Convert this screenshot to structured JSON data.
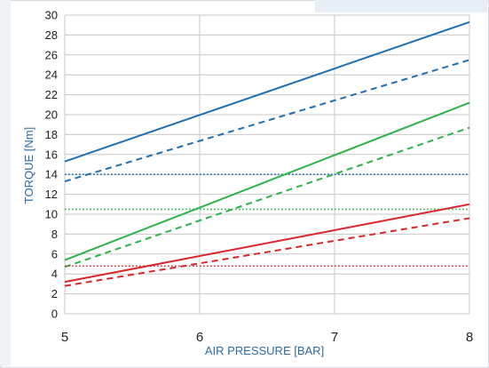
{
  "chart_data": {
    "type": "line",
    "title": "",
    "xlabel": "AIR PRESSURE [BAR]",
    "ylabel": "TORQUE [Nm]",
    "xlim": [
      5,
      8
    ],
    "ylim": [
      0,
      30
    ],
    "x_ticks": [
      "5",
      "6",
      "7",
      "8"
    ],
    "y_ticks": [
      "0",
      "2",
      "4",
      "6",
      "8",
      "10",
      "12",
      "14",
      "16",
      "18",
      "20",
      "22",
      "24",
      "26",
      "28",
      "30"
    ],
    "grid": true,
    "legend": "none",
    "series": [
      {
        "color": "#1f6fb4",
        "style": "solid",
        "x": [
          5,
          8
        ],
        "y": [
          15.3,
          29.3
        ]
      },
      {
        "color": "#1f6fb4",
        "style": "dashed",
        "x": [
          5,
          8
        ],
        "y": [
          13.3,
          25.5
        ]
      },
      {
        "color": "#1f6fb4",
        "style": "dotted",
        "x": [
          5,
          8
        ],
        "y": [
          14.0,
          14.0
        ]
      },
      {
        "color": "#2db34a",
        "style": "solid",
        "x": [
          5,
          8
        ],
        "y": [
          5.4,
          21.2
        ]
      },
      {
        "color": "#2db34a",
        "style": "dashed",
        "x": [
          5,
          8
        ],
        "y": [
          4.7,
          18.7
        ]
      },
      {
        "color": "#2db34a",
        "style": "dotted",
        "x": [
          5,
          8
        ],
        "y": [
          10.5,
          10.5
        ]
      },
      {
        "color": "#d9262b",
        "style": "solid",
        "x": [
          5,
          8
        ],
        "y": [
          3.2,
          11.0
        ]
      },
      {
        "color": "#d9262b",
        "style": "dashed",
        "x": [
          5,
          8
        ],
        "y": [
          2.8,
          9.6
        ]
      },
      {
        "color": "#d9262b",
        "style": "dotted",
        "x": [
          5,
          8
        ],
        "y": [
          4.8,
          4.8
        ]
      }
    ]
  }
}
